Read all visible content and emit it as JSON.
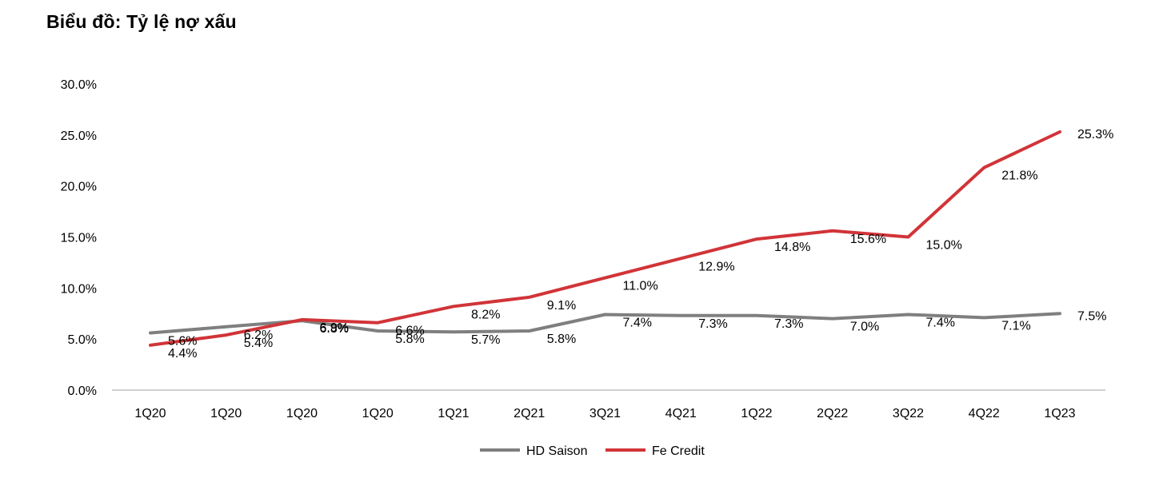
{
  "chart_data": {
    "type": "line",
    "title": "Biểu đồ: Tỷ lệ nợ xấu",
    "xlabel": "",
    "ylabel": "",
    "ylim": [
      0,
      30
    ],
    "yticks": [
      0,
      5,
      10,
      15,
      20,
      25,
      30
    ],
    "ytick_labels": [
      "0.0%",
      "5.0%",
      "10.0%",
      "15.0%",
      "20.0%",
      "25.0%",
      "30.0%"
    ],
    "categories": [
      "1Q20",
      "1Q20",
      "1Q20",
      "1Q20",
      "1Q21",
      "2Q21",
      "3Q21",
      "4Q21",
      "1Q22",
      "2Q22",
      "3Q22",
      "4Q22",
      "1Q23"
    ],
    "grid": false,
    "legend_position": "bottom",
    "series": [
      {
        "name": "HD Saison",
        "color": "#7f7f7f",
        "values": [
          5.6,
          6.2,
          6.8,
          5.8,
          5.7,
          5.8,
          7.4,
          7.3,
          7.3,
          7.0,
          7.4,
          7.1,
          7.5
        ],
        "labels": [
          "5.6%",
          "6.2%",
          "6.8%",
          "5.8%",
          "5.7%",
          "5.8%",
          "7.4%",
          "7.3%",
          "7.3%",
          "7.0%",
          "7.4%",
          "7.1%",
          "7.5%"
        ]
      },
      {
        "name": "Fe Credit",
        "color": "#d13438",
        "values": [
          4.4,
          5.4,
          6.9,
          6.6,
          8.2,
          9.1,
          11.0,
          12.9,
          14.8,
          15.6,
          15.0,
          21.8,
          25.3
        ],
        "labels": [
          "4.4%",
          "5.4%",
          "6.9%",
          "6.6%",
          "8.2%",
          "9.1%",
          "11.0%",
          "12.9%",
          "14.8%",
          "15.6%",
          "15.0%",
          "21.8%",
          "25.3%"
        ]
      }
    ]
  }
}
